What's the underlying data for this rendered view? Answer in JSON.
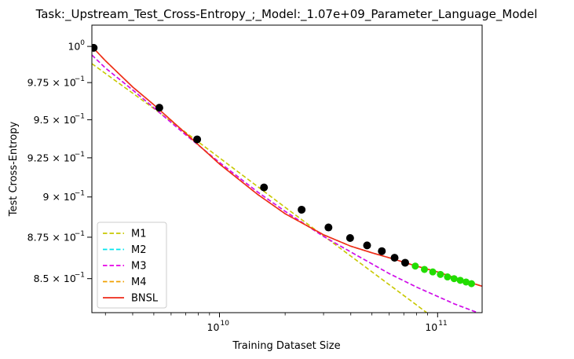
{
  "chart_data": {
    "type": "line",
    "title": "Task:_Upstream_Test_Cross-Entropy_;_Model:_1.07e+09_Parameter_Language_Model",
    "xlabel": "Training Dataset Size",
    "ylabel": "Test Cross-Entropy",
    "xscale": "log",
    "yscale": "log",
    "xlim": [
      2600000000.0,
      160000000000.0
    ],
    "ylim": [
      0.83,
      1.015
    ],
    "x_ticks": [
      {
        "value": 10000000000.0,
        "base": "10",
        "exp": "10"
      },
      {
        "value": 100000000000.0,
        "base": "10",
        "exp": "11"
      }
    ],
    "y_ticks": [
      {
        "value": 1.0,
        "mant": "",
        "exp": "0"
      },
      {
        "value": 0.975,
        "mant": "9.75",
        "exp": "−1"
      },
      {
        "value": 0.95,
        "mant": "9.5",
        "exp": "−1"
      },
      {
        "value": 0.925,
        "mant": "9.25",
        "exp": "−1"
      },
      {
        "value": 0.9,
        "mant": "9",
        "exp": "−1"
      },
      {
        "value": 0.875,
        "mant": "8.75",
        "exp": "−1"
      },
      {
        "value": 0.85,
        "mant": "8.5",
        "exp": "−1"
      }
    ],
    "grid": false,
    "legend_position": "lower-left",
    "train_points": {
      "color": "#000000",
      "x": [
        2650000000.0,
        5300000000.0,
        7900000000.0,
        16000000000.0,
        23800000000.0,
        31600000000.0,
        39700000000.0,
        47500000000.0,
        55500000000.0,
        63500000000.0,
        71000000000.0
      ],
      "y": [
        0.999,
        0.958,
        0.937,
        0.906,
        0.892,
        0.881,
        0.8745,
        0.87,
        0.8665,
        0.8625,
        0.8595
      ]
    },
    "test_points": {
      "color": "#22dd00",
      "x": [
        79000000000.0,
        87000000000.0,
        95000000000.0,
        103000000000.0,
        111000000000.0,
        119000000000.0,
        127000000000.0,
        135000000000.0,
        143000000000.0
      ],
      "y": [
        0.8575,
        0.8555,
        0.854,
        0.8525,
        0.851,
        0.85,
        0.849,
        0.848,
        0.847
      ]
    },
    "series": [
      {
        "name": "M1",
        "color": "#c8c800",
        "dash": true,
        "x": [
          2600000000.0,
          5000000000.0,
          10000000000.0,
          20000000000.0,
          40000000000.0,
          80000000000.0,
          160000000000.0
        ],
        "y": [
          0.988,
          0.9575,
          0.925,
          0.8935,
          0.8635,
          0.8345,
          0.806
        ]
      },
      {
        "name": "M2",
        "color": "#00e5ee",
        "dash": true,
        "x": [
          2600000000.0,
          3000000000.0,
          4000000000.0,
          5000000000.0,
          7000000000.0,
          10000000000.0,
          15000000000.0,
          20000000000.0,
          30000000000.0,
          40000000000.0,
          60000000000.0,
          80000000000.0,
          120000000000.0,
          160000000000.0
        ],
        "y": [
          0.994,
          0.985,
          0.97,
          0.958,
          0.94,
          0.922,
          0.903,
          0.891,
          0.8755,
          0.866,
          0.853,
          0.845,
          0.835,
          0.829
        ]
      },
      {
        "name": "M3",
        "color": "#e600e6",
        "dash": true,
        "x": [
          2600000000.0,
          3000000000.0,
          4000000000.0,
          5000000000.0,
          7000000000.0,
          10000000000.0,
          15000000000.0,
          20000000000.0,
          30000000000.0,
          40000000000.0,
          60000000000.0,
          80000000000.0,
          120000000000.0,
          160000000000.0
        ],
        "y": [
          0.994,
          0.985,
          0.97,
          0.958,
          0.94,
          0.922,
          0.903,
          0.891,
          0.8755,
          0.866,
          0.853,
          0.845,
          0.835,
          0.829
        ]
      },
      {
        "name": "M4",
        "color": "#f0a000",
        "dash": true,
        "x": [
          2600000000.0,
          3000000000.0,
          4000000000.0,
          5000000000.0,
          7000000000.0,
          10000000000.0,
          15000000000.0,
          20000000000.0,
          30000000000.0,
          40000000000.0,
          50000000000.0,
          60000000000.0,
          80000000000.0,
          100000000000.0,
          120000000000.0,
          160000000000.0
        ],
        "y": [
          1.0,
          0.99,
          0.972,
          0.96,
          0.941,
          0.921,
          0.9015,
          0.8895,
          0.8765,
          0.8695,
          0.8655,
          0.8625,
          0.8575,
          0.854,
          0.8505,
          0.8455
        ]
      },
      {
        "name": "BNSL",
        "color": "#ee2a1a",
        "dash": false,
        "x": [
          2600000000.0,
          3000000000.0,
          4000000000.0,
          5000000000.0,
          7000000000.0,
          10000000000.0,
          15000000000.0,
          20000000000.0,
          30000000000.0,
          40000000000.0,
          50000000000.0,
          60000000000.0,
          80000000000.0,
          100000000000.0,
          120000000000.0,
          160000000000.0
        ],
        "y": [
          1.0,
          0.99,
          0.972,
          0.96,
          0.941,
          0.921,
          0.9015,
          0.8895,
          0.8765,
          0.8695,
          0.8655,
          0.8625,
          0.8575,
          0.854,
          0.8505,
          0.8455
        ]
      }
    ]
  }
}
